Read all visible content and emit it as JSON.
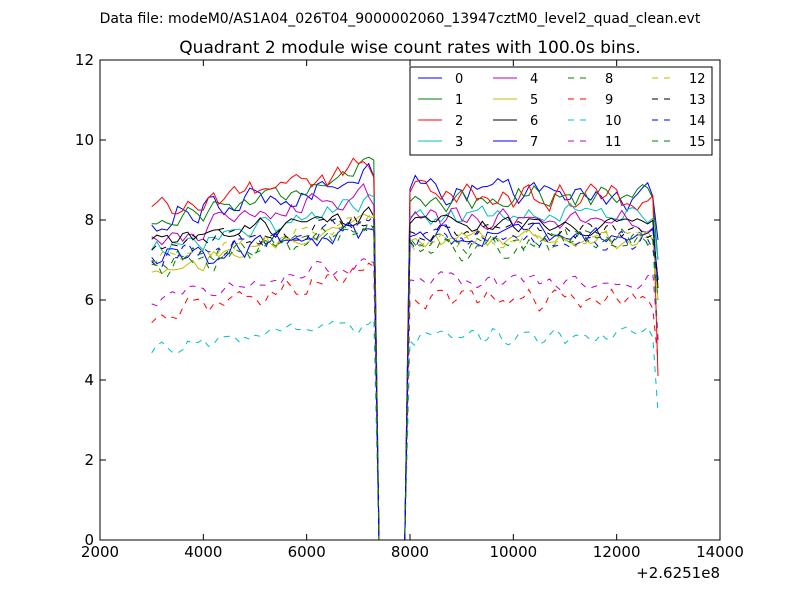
{
  "suptitle": "Data file: modeM0/AS1A04_026T04_9000002060_13947cztM0_level2_quad_clean.evt",
  "chart_data": {
    "type": "line",
    "title": "Quadrant 2 module wise count rates with 100.0s bins.",
    "xlabel": "",
    "ylabel": "",
    "xlim": [
      2000,
      14000
    ],
    "ylim": [
      0,
      12
    ],
    "x_offset_label": "+2.6251e8",
    "xticks": [
      2000,
      4000,
      6000,
      8000,
      10000,
      12000,
      14000
    ],
    "xtick_labels": [
      "2000",
      "4000",
      "6000",
      "8000",
      "10000",
      "12000",
      "14000"
    ],
    "yticks": [
      0,
      2,
      4,
      6,
      8,
      10,
      12
    ],
    "ytick_labels": [
      "0",
      "2",
      "4",
      "6",
      "8",
      "10",
      "12"
    ],
    "legend_position": "top-right",
    "gap": {
      "start": 7400,
      "end": 7900,
      "value": 0
    },
    "x_start": 3000,
    "x_end": 12800,
    "bin": 100,
    "series": [
      {
        "name": "0",
        "color": "#0000ff",
        "dash": "solid",
        "pre_level": 7.9,
        "pre_slope": 1.3,
        "post_level": 8.8,
        "post_slope": -0.2,
        "noise": 0.45,
        "end_value": 7.5
      },
      {
        "name": "1",
        "color": "#008000",
        "dash": "solid",
        "pre_level": 7.9,
        "pre_slope": 1.4,
        "post_level": 8.5,
        "post_slope": 0.2,
        "noise": 0.35,
        "end_value": 7.0
      },
      {
        "name": "2",
        "color": "#ff0000",
        "dash": "solid",
        "pre_level": 8.3,
        "pre_slope": 1.0,
        "post_level": 8.7,
        "post_slope": -0.2,
        "noise": 0.4,
        "end_value": 4.1
      },
      {
        "name": "3",
        "color": "#00bfbf",
        "dash": "solid",
        "pre_level": 7.2,
        "pre_slope": 1.3,
        "post_level": 8.1,
        "post_slope": 0.0,
        "noise": 0.35,
        "end_value": 7.0
      },
      {
        "name": "4",
        "color": "#bf00bf",
        "dash": "solid",
        "pre_level": 7.5,
        "pre_slope": 1.2,
        "post_level": 8.0,
        "post_slope": 0.0,
        "noise": 0.35,
        "end_value": 6.5
      },
      {
        "name": "5",
        "color": "#bfbf00",
        "dash": "solid",
        "pre_level": 6.6,
        "pre_slope": 1.5,
        "post_level": 7.5,
        "post_slope": 0.0,
        "noise": 0.3,
        "end_value": 6.0
      },
      {
        "name": "6",
        "color": "#000000",
        "dash": "solid",
        "pre_level": 7.4,
        "pre_slope": 0.8,
        "post_level": 7.9,
        "post_slope": -0.1,
        "noise": 0.3,
        "end_value": 6.3
      },
      {
        "name": "7",
        "color": "#0000ff",
        "dash": "solid",
        "pre_level": 6.9,
        "pre_slope": 1.0,
        "post_level": 7.6,
        "post_slope": 0.1,
        "noise": 0.35,
        "end_value": 6.5
      },
      {
        "name": "8",
        "color": "#008000",
        "dash": "dashed",
        "pre_level": 6.8,
        "pre_slope": 0.9,
        "post_level": 7.2,
        "post_slope": 0.4,
        "noise": 0.35,
        "end_value": 5.0
      },
      {
        "name": "9",
        "color": "#ff0000",
        "dash": "dashed",
        "pre_level": 5.6,
        "pre_slope": 1.2,
        "post_level": 6.0,
        "post_slope": 0.0,
        "noise": 0.35,
        "end_value": 4.5
      },
      {
        "name": "10",
        "color": "#00bfbf",
        "dash": "dashed",
        "pre_level": 4.8,
        "pre_slope": 0.7,
        "post_level": 5.0,
        "post_slope": 0.1,
        "noise": 0.3,
        "end_value": 3.2
      },
      {
        "name": "11",
        "color": "#bf00bf",
        "dash": "dashed",
        "pre_level": 6.0,
        "pre_slope": 1.0,
        "post_level": 6.5,
        "post_slope": 0.0,
        "noise": 0.3,
        "end_value": 5.0
      },
      {
        "name": "12",
        "color": "#bfbf00",
        "dash": "dashed",
        "pre_level": 7.0,
        "pre_slope": 1.0,
        "post_level": 7.4,
        "post_slope": 0.2,
        "noise": 0.3,
        "end_value": 6.0
      },
      {
        "name": "13",
        "color": "#000000",
        "dash": "dashed",
        "pre_level": 7.3,
        "pre_slope": 0.7,
        "post_level": 7.7,
        "post_slope": 0.0,
        "noise": 0.3,
        "end_value": 6.5
      },
      {
        "name": "14",
        "color": "#0000ff",
        "dash": "dashed",
        "pre_level": 7.0,
        "pre_slope": 1.0,
        "post_level": 7.5,
        "post_slope": 0.0,
        "noise": 0.35,
        "end_value": 6.5
      },
      {
        "name": "15",
        "color": "#008000",
        "dash": "dashed",
        "pre_level": 6.9,
        "pre_slope": 0.9,
        "post_level": 7.4,
        "post_slope": 0.1,
        "noise": 0.35,
        "end_value": 6.0
      }
    ]
  }
}
